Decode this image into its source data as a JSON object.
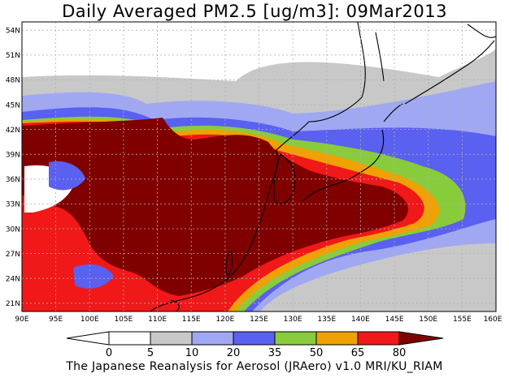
{
  "title": "Daily Averaged PM2.5 [ug/m3]: 09Mar2013",
  "footer": "The Japanese Reanalysis for Aerosol (JRAero) v1.0 MRI/KU_RIAM",
  "map": {
    "lon_range": [
      90,
      160
    ],
    "lat_range": [
      20,
      55
    ],
    "x_ticks": [
      "90E",
      "95E",
      "100E",
      "105E",
      "110E",
      "115E",
      "120E",
      "125E",
      "130E",
      "135E",
      "140E",
      "145E",
      "150E",
      "155E",
      "160E"
    ],
    "y_ticks": [
      "54N",
      "51N",
      "48N",
      "45N",
      "42N",
      "39N",
      "36N",
      "33N",
      "30N",
      "27N",
      "24N",
      "21N"
    ],
    "grid": true
  },
  "colorbar": {
    "labels": [
      "0",
      "5",
      "10",
      "20",
      "35",
      "50",
      "65",
      "80"
    ],
    "colors": [
      "#ffffff",
      "#c8c8c8",
      "#a0a8f4",
      "#5a60f0",
      "#88cc3c",
      "#f0a000",
      "#f01818",
      "#800000"
    ]
  }
}
